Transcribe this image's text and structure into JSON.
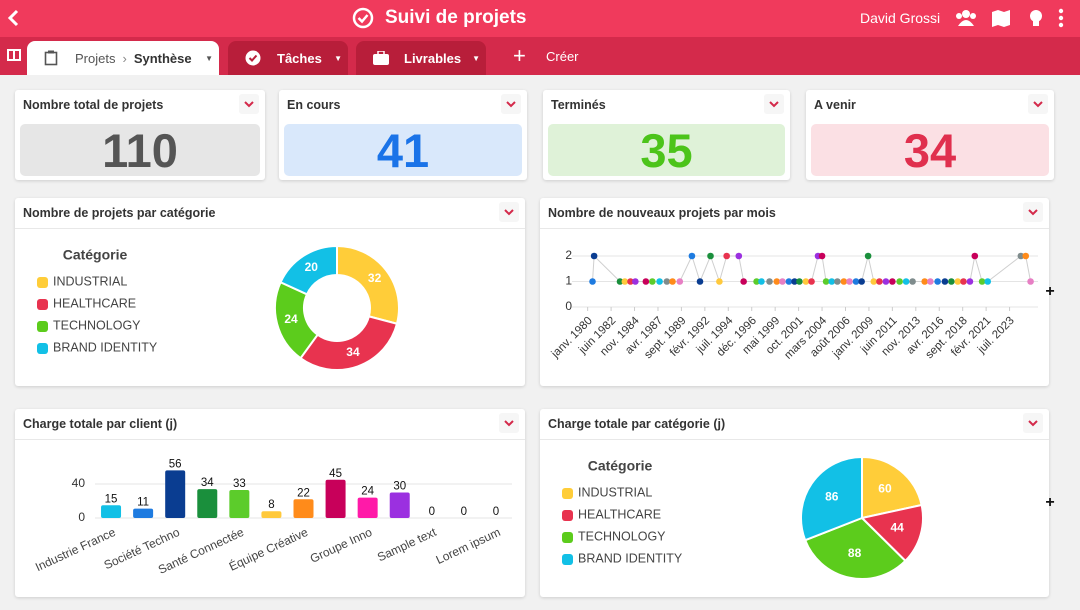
{
  "header": {
    "title": "Suivi de projets",
    "user": "David Grossi"
  },
  "tabs": {
    "breadcrumb": "Projets",
    "active": "Synthèse",
    "items": [
      "Tâches",
      "Livrables"
    ],
    "create": "Créer"
  },
  "kpis": [
    {
      "title": "Nombre total de projets",
      "value": 110,
      "color": "#555555",
      "background": "#e6e6e6"
    },
    {
      "title": "En cours",
      "value": 41,
      "color": "#1a73e8",
      "background": "#d9e8fb"
    },
    {
      "title": "Terminés",
      "value": 35,
      "color": "#4cc41a",
      "background": "#dff2d8"
    },
    {
      "title": "A venir",
      "value": 34,
      "color": "#e0304e",
      "background": "#fbe0e4"
    }
  ],
  "chart_data": [
    {
      "type": "donut",
      "title": "Nombre de projets par catégorie",
      "legend_title": "Catégorie",
      "categories": [
        "INDUSTRIAL",
        "HEALTHCARE",
        "TECHNOLOGY",
        "BRAND IDENTITY"
      ],
      "values": [
        32,
        34,
        24,
        20
      ],
      "colors": [
        "#ffcd39",
        "#e8334f",
        "#5ccc1c",
        "#12c0e6"
      ],
      "legend": "left"
    },
    {
      "type": "line",
      "title": "Nombre de nouveaux projets par mois",
      "x": [
        "1980-07",
        "1980-09",
        "1983-05",
        "1983-11",
        "1984-06",
        "1984-12",
        "1986-01",
        "1986-09",
        "1987-06",
        "1988-03",
        "1988-10",
        "1989-07",
        "1990-10",
        "1991-08",
        "1992-09",
        "1993-08",
        "1994-05",
        "1995-08",
        "1996-02",
        "1997-06",
        "1997-12",
        "1998-10",
        "1999-07",
        "2000-02",
        "2000-10",
        "2001-05",
        "2001-11",
        "2002-07",
        "2003-02",
        "2003-10",
        "2004-03",
        "2004-08",
        "2005-03",
        "2005-10",
        "2006-06",
        "2007-01",
        "2007-09",
        "2008-04",
        "2008-12",
        "2009-07",
        "2010-02",
        "2010-10",
        "2011-06",
        "2012-03",
        "2012-11",
        "2013-07",
        "2014-10",
        "2015-05",
        "2016-02",
        "2016-11",
        "2017-07",
        "2018-03",
        "2018-10",
        "2019-06",
        "2019-12",
        "2020-09",
        "2021-04",
        "2024-09",
        "2025-03",
        "2025-09"
      ],
      "values": [
        1,
        2,
        1,
        1,
        1,
        1,
        1,
        1,
        1,
        1,
        1,
        1,
        2,
        1,
        2,
        1,
        2,
        2,
        1,
        1,
        1,
        1,
        1,
        1,
        1,
        1,
        1,
        1,
        1,
        2,
        2,
        1,
        1,
        1,
        1,
        1,
        1,
        1,
        2,
        1,
        1,
        1,
        1,
        1,
        1,
        1,
        1,
        1,
        1,
        1,
        1,
        1,
        1,
        1,
        2,
        1,
        1,
        2,
        2,
        1
      ],
      "xlim": [
        "1979-06",
        "2025-12"
      ],
      "ylim": [
        0,
        2
      ],
      "yticks": [
        0,
        1,
        2
      ],
      "xticks": [
        {
          "value": "1980-01",
          "label": "janv. 1980"
        },
        {
          "value": "1982-06",
          "label": "juin 1982"
        },
        {
          "value": "1984-11",
          "label": "nov. 1984"
        },
        {
          "value": "1987-04",
          "label": "avr. 1987"
        },
        {
          "value": "1989-09",
          "label": "sept. 1989"
        },
        {
          "value": "1992-02",
          "label": "févr. 1992"
        },
        {
          "value": "1994-07",
          "label": "juil. 1994"
        },
        {
          "value": "1996-12",
          "label": "déc. 1996"
        },
        {
          "value": "1999-05",
          "label": "mai 1999"
        },
        {
          "value": "2001-10",
          "label": "oct. 2001"
        },
        {
          "value": "2004-03",
          "label": "mars 2004"
        },
        {
          "value": "2006-08",
          "label": "août 2006"
        },
        {
          "value": "2009-01",
          "label": "janv. 2009"
        },
        {
          "value": "2011-06",
          "label": "juin 2011"
        },
        {
          "value": "2013-11",
          "label": "nov. 2013"
        },
        {
          "value": "2016-04",
          "label": "avr. 2016"
        },
        {
          "value": "2018-09",
          "label": "sept. 2018"
        },
        {
          "value": "2021-02",
          "label": "févr. 2021"
        },
        {
          "value": "2023-07",
          "label": "juil. 2023"
        }
      ],
      "line_color": "#cfcfcf",
      "point_colors": [
        "#1e7be0",
        "#0a3d91",
        "#1a8f3c",
        "#ffc93c",
        "#e8334f",
        "#9b30e0",
        "#c8005a",
        "#5ccc2b",
        "#12c0e6",
        "#7f8c8d",
        "#ff8b1a",
        "#e77fc4"
      ],
      "grid": true
    },
    {
      "type": "bar",
      "title": "Charge totale par client (j)",
      "categories": [
        "Industrie France",
        null,
        "Société Techno",
        null,
        "Santé Connectée",
        null,
        "Équipe Créative",
        null,
        "Groupe Inno",
        null,
        "Sample text",
        null,
        "Lorem ipsum"
      ],
      "values": [
        15,
        11,
        56,
        34,
        33,
        8,
        22,
        45,
        24,
        30,
        0,
        0,
        0
      ],
      "colors": [
        "#12c0e6",
        "#1e7be0",
        "#0a3d91",
        "#1a8f3c",
        "#5ccc2b",
        "#ffc93c",
        "#ff8b1a",
        "#c8005a",
        "#ff1aa8",
        "#9b30e0",
        "#999999",
        "#999999",
        "#999999"
      ],
      "ylim": [
        0,
        60
      ],
      "yticks": [
        0,
        40
      ],
      "grid": true
    },
    {
      "type": "pie",
      "title": "Charge totale par catégorie (j)",
      "legend_title": "Catégorie",
      "categories": [
        "INDUSTRIAL",
        "HEALTHCARE",
        "TECHNOLOGY",
        "BRAND IDENTITY"
      ],
      "values": [
        60,
        44,
        88,
        86
      ],
      "colors": [
        "#ffcd39",
        "#e8334f",
        "#5ccc1c",
        "#12c0e6"
      ],
      "legend": "left"
    }
  ]
}
